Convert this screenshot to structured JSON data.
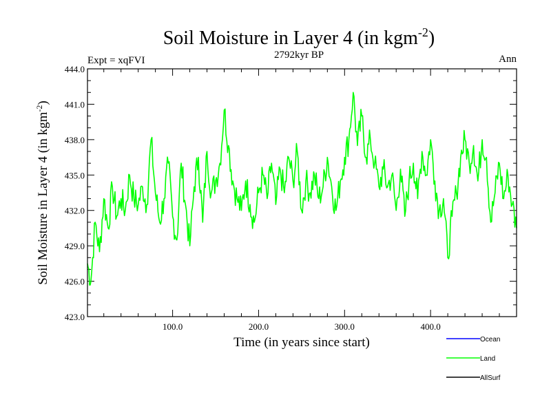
{
  "chart_data": {
    "type": "line",
    "title_main": "Soil Moisture in Layer 4 (in kgm",
    "title_sup": "-2",
    "title_close": ")",
    "subtitle": "2792kyr BP",
    "left_label": "Expt = xqFVI",
    "right_label": "Ann",
    "xlabel": "Time (in years since start)",
    "ylabel_main": "Soil Moisture in Layer 4 (in kgm",
    "ylabel_sup": "-2",
    "ylabel_close": ")",
    "xlim": [
      1,
      500
    ],
    "ylim": [
      423.0,
      444.0
    ],
    "x_ticks": [
      100,
      200,
      300,
      400
    ],
    "x_tick_labels": [
      "100.0",
      "200.0",
      "300.0",
      "400.0"
    ],
    "y_ticks": [
      423,
      426,
      429,
      432,
      435,
      438,
      441,
      444
    ],
    "y_tick_labels": [
      "423.0",
      "426.0",
      "429.0",
      "432.0",
      "435.0",
      "438.0",
      "441.0",
      "444.0"
    ],
    "legend": [
      {
        "name": "Ocean",
        "color": "#0000ff"
      },
      {
        "name": "Land",
        "color": "#00ff00"
      },
      {
        "name": "AllSurf",
        "color": "#000000"
      }
    ],
    "series": [
      {
        "name": "Land",
        "color": "#00ff00",
        "x": [
          1,
          5,
          10,
          15,
          20,
          25,
          30,
          35,
          40,
          45,
          50,
          55,
          60,
          65,
          70,
          75,
          80,
          85,
          90,
          95,
          100,
          105,
          110,
          115,
          120,
          125,
          130,
          135,
          140,
          145,
          150,
          155,
          160,
          165,
          170,
          175,
          180,
          185,
          190,
          195,
          200,
          205,
          210,
          215,
          220,
          225,
          230,
          235,
          240,
          245,
          250,
          255,
          260,
          265,
          270,
          275,
          280,
          285,
          290,
          295,
          300,
          305,
          310,
          315,
          320,
          325,
          330,
          335,
          340,
          345,
          350,
          355,
          360,
          365,
          370,
          375,
          380,
          385,
          390,
          395,
          400,
          405,
          410,
          415,
          420,
          425,
          430,
          435,
          440,
          445,
          450,
          455,
          460,
          465,
          470,
          475,
          480,
          485,
          490,
          495,
          500
        ],
        "values": [
          427.5,
          426.0,
          431.0,
          428.5,
          433.0,
          430.5,
          434.0,
          431.5,
          433.0,
          432.0,
          435.0,
          433.0,
          432.5,
          434.0,
          432.5,
          438.0,
          433.5,
          431.0,
          433.0,
          436.0,
          431.5,
          429.5,
          436.0,
          432.5,
          429.0,
          434.0,
          436.5,
          431.0,
          437.0,
          433.5,
          434.5,
          436.0,
          440.5,
          437.5,
          434.5,
          433.0,
          432.0,
          434.5,
          432.5,
          431.0,
          433.5,
          435.0,
          433.0,
          436.0,
          432.5,
          435.5,
          433.5,
          436.5,
          434.5,
          437.0,
          432.0,
          434.5,
          433.5,
          435.0,
          433.0,
          434.0,
          436.5,
          434.0,
          432.0,
          434.5,
          436.5,
          438.0,
          442.0,
          437.5,
          440.0,
          436.5,
          438.0,
          436.0,
          434.0,
          435.5,
          434.0,
          435.0,
          432.0,
          435.5,
          431.5,
          434.5,
          436.0,
          433.0,
          437.0,
          435.0,
          438.0,
          434.5,
          432.0,
          433.0,
          428.0,
          431.5,
          433.5,
          436.5,
          438.0,
          436.0,
          437.5,
          434.5,
          438.0,
          436.5,
          431.0,
          433.5,
          436.0,
          433.0,
          435.0,
          432.5,
          430.5
        ]
      }
    ]
  }
}
